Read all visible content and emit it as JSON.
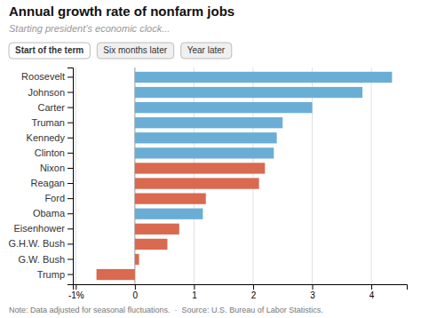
{
  "chart_data": {
    "type": "bar",
    "orientation": "horizontal",
    "title": "Annual growth rate of nonfarm jobs",
    "subtitle": "Starting president’s economic clock...",
    "annotations": [
      "Start of the term",
      "Six months later",
      "Year later",
      "Note: Data adjusted for seasonal fluctuations.  ·  Source: U.S. Bureau of Labor Statistics."
    ],
    "categories": [
      "Roosevelt",
      "Johnson",
      "Carter",
      "Truman",
      "Kennedy",
      "Clinton",
      "Nixon",
      "Reagan",
      "Ford",
      "Obama",
      "Eisenhower",
      "G.H.W. Bush",
      "G.W. Bush",
      "Trump"
    ],
    "values": [
      4.35,
      3.85,
      3.0,
      2.5,
      2.4,
      2.35,
      2.2,
      2.1,
      1.2,
      1.15,
      0.75,
      0.55,
      0.07,
      -0.65
    ],
    "colors": [
      "#6aaed6",
      "#6aaed6",
      "#6aaed6",
      "#6aaed6",
      "#6aaed6",
      "#6aaed6",
      "#d9694f",
      "#d9694f",
      "#d9694f",
      "#6aaed6",
      "#d9694f",
      "#d9694f",
      "#d9694f",
      "#d9694f"
    ],
    "xlim": [
      -1.05,
      4.6
    ],
    "xticks": [
      {
        "value": -1,
        "label": "-1%"
      },
      0,
      1,
      2,
      3,
      4
    ],
    "grid": true
  }
}
